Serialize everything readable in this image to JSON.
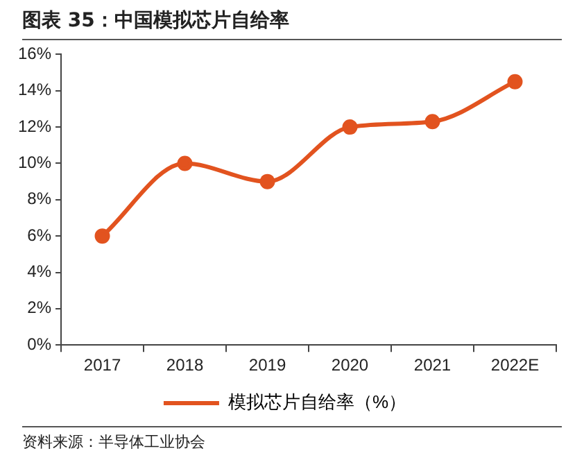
{
  "chart_data": {
    "type": "line",
    "title": "图表 35：中国模拟芯片自给率",
    "categories": [
      "2017",
      "2018",
      "2019",
      "2020",
      "2021",
      "2022E"
    ],
    "series": [
      {
        "name": "模拟芯片自给率（%）",
        "color": "#e2531f",
        "values": [
          6,
          10,
          9,
          12,
          12.3,
          14.5
        ]
      }
    ],
    "ylim": [
      0,
      16
    ],
    "yticks": [
      {
        "value": 0,
        "label": "0%"
      },
      {
        "value": 2,
        "label": "2%"
      },
      {
        "value": 4,
        "label": "4%"
      },
      {
        "value": 6,
        "label": "6%"
      },
      {
        "value": 8,
        "label": "8%"
      },
      {
        "value": 10,
        "label": "10%"
      },
      {
        "value": 12,
        "label": "12%"
      },
      {
        "value": 14,
        "label": "14%"
      },
      {
        "value": 16,
        "label": "16%"
      }
    ],
    "legend": "bottom",
    "marker": "circle",
    "line_style": "solid",
    "annotations": [
      "资料来源：半导体工业协会"
    ]
  }
}
